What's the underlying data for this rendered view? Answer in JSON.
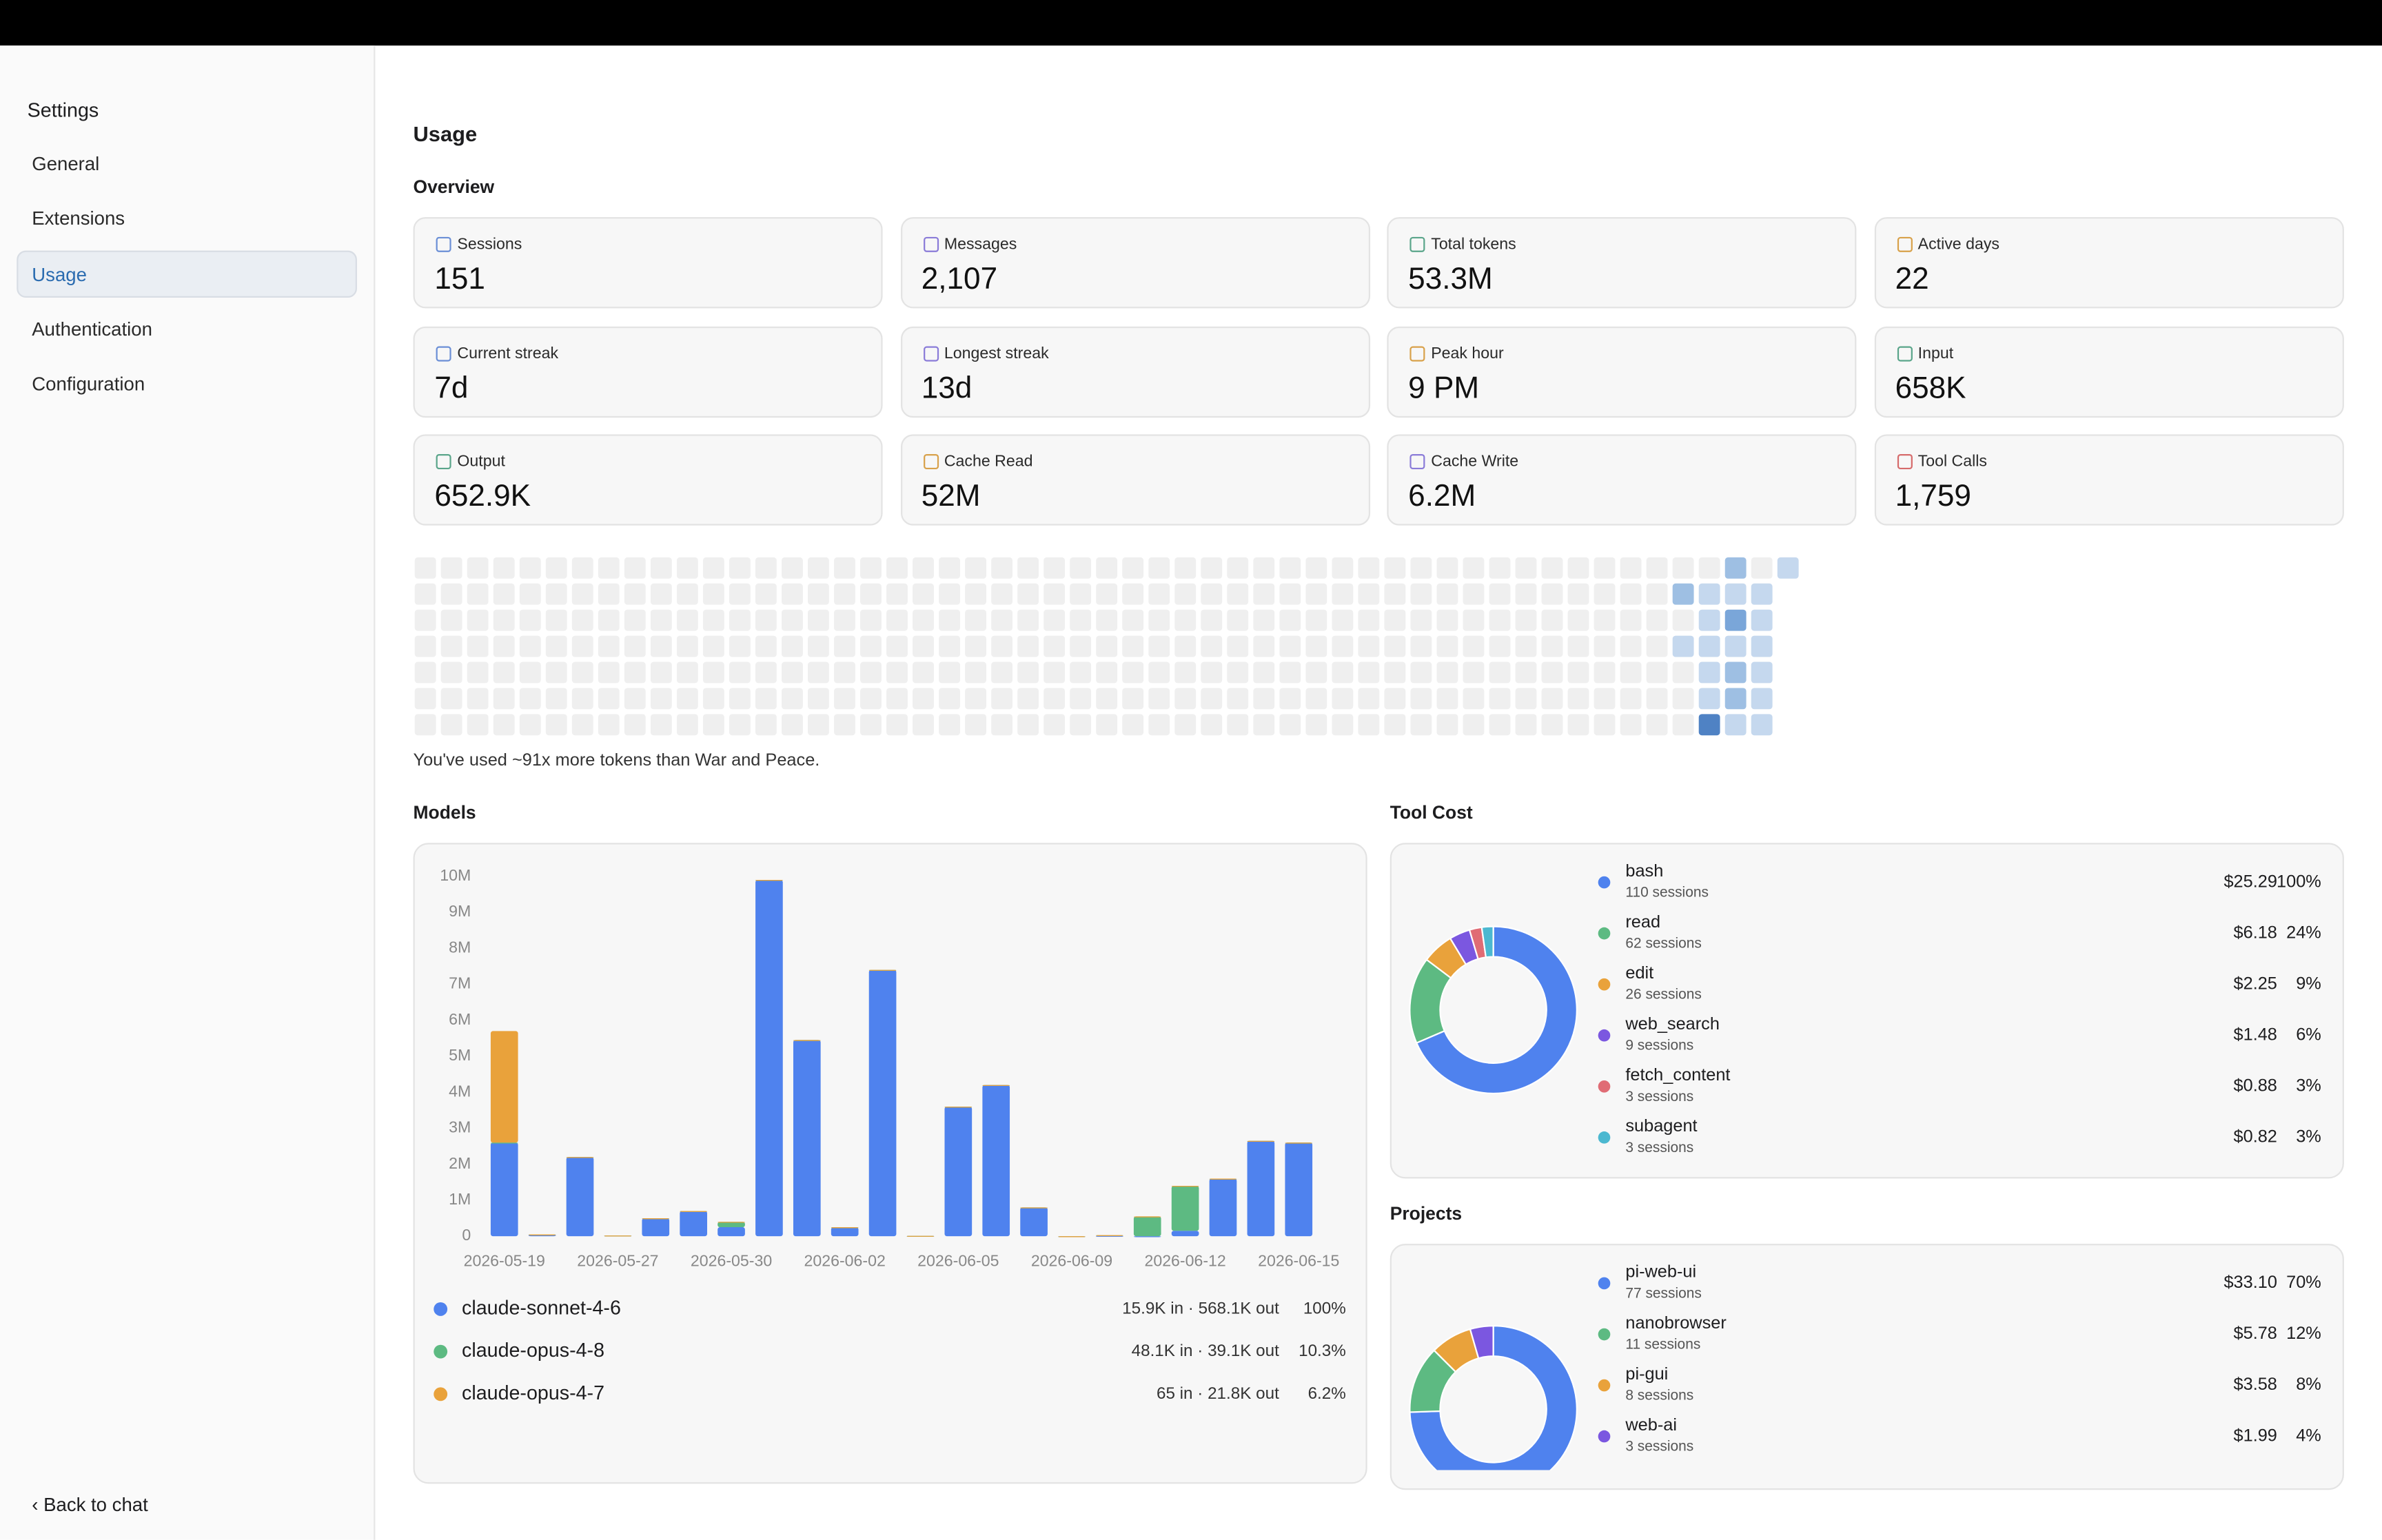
{
  "sidebar": {
    "title": "Settings",
    "items": [
      "General",
      "Extensions",
      "Usage",
      "Authentication",
      "Configuration"
    ],
    "selected": 2,
    "back": "Back to chat"
  },
  "page": {
    "title": "Usage",
    "overview": "Overview"
  },
  "stats": [
    {
      "label": "Sessions",
      "value": "151"
    },
    {
      "label": "Messages",
      "value": "2,107"
    },
    {
      "label": "Total tokens",
      "value": "53.3M"
    },
    {
      "label": "Active days",
      "value": "22"
    },
    {
      "label": "Current streak",
      "value": "7d"
    },
    {
      "label": "Longest streak",
      "value": "13d"
    },
    {
      "label": "Peak hour",
      "value": "9 PM"
    },
    {
      "label": "Input",
      "value": "658K"
    },
    {
      "label": "Output",
      "value": "652.9K"
    },
    {
      "label": "Cache Read",
      "value": "52M"
    },
    {
      "label": "Cache Write",
      "value": "6.2M"
    },
    {
      "label": "Tool Calls",
      "value": "1,759"
    }
  ],
  "heatmap": {
    "colors": [
      "#efefef",
      "#c5d8ee",
      "#9ebfe3",
      "#7aa6d9",
      "#4f82c4"
    ],
    "levels": [
      [
        0,
        0,
        0,
        0,
        0,
        0,
        0,
        0,
        0,
        0,
        0,
        0,
        0,
        0,
        0,
        0,
        0,
        0,
        0,
        0,
        0,
        0,
        0,
        0,
        0,
        0,
        0,
        0,
        0,
        0,
        0,
        0,
        0,
        0,
        0,
        0,
        0,
        0,
        0,
        0,
        0,
        0,
        0,
        0,
        0,
        0,
        0,
        0,
        0,
        0,
        2,
        0,
        1
      ],
      [
        0,
        0,
        0,
        0,
        0,
        0,
        0,
        0,
        0,
        0,
        0,
        0,
        0,
        0,
        0,
        0,
        0,
        0,
        0,
        0,
        0,
        0,
        0,
        0,
        0,
        0,
        0,
        0,
        0,
        0,
        0,
        0,
        0,
        0,
        0,
        0,
        0,
        0,
        0,
        0,
        0,
        0,
        0,
        0,
        0,
        0,
        0,
        0,
        2,
        1,
        1,
        1,
        null
      ],
      [
        0,
        0,
        0,
        0,
        0,
        0,
        0,
        0,
        0,
        0,
        0,
        0,
        0,
        0,
        0,
        0,
        0,
        0,
        0,
        0,
        0,
        0,
        0,
        0,
        0,
        0,
        0,
        0,
        0,
        0,
        0,
        0,
        0,
        0,
        0,
        0,
        0,
        0,
        0,
        0,
        0,
        0,
        0,
        0,
        0,
        0,
        0,
        0,
        0,
        1,
        3,
        1,
        null
      ],
      [
        0,
        0,
        0,
        0,
        0,
        0,
        0,
        0,
        0,
        0,
        0,
        0,
        0,
        0,
        0,
        0,
        0,
        0,
        0,
        0,
        0,
        0,
        0,
        0,
        0,
        0,
        0,
        0,
        0,
        0,
        0,
        0,
        0,
        0,
        0,
        0,
        0,
        0,
        0,
        0,
        0,
        0,
        0,
        0,
        0,
        0,
        0,
        0,
        1,
        1,
        1,
        1,
        null
      ],
      [
        0,
        0,
        0,
        0,
        0,
        0,
        0,
        0,
        0,
        0,
        0,
        0,
        0,
        0,
        0,
        0,
        0,
        0,
        0,
        0,
        0,
        0,
        0,
        0,
        0,
        0,
        0,
        0,
        0,
        0,
        0,
        0,
        0,
        0,
        0,
        0,
        0,
        0,
        0,
        0,
        0,
        0,
        0,
        0,
        0,
        0,
        0,
        0,
        0,
        1,
        2,
        1,
        null
      ],
      [
        0,
        0,
        0,
        0,
        0,
        0,
        0,
        0,
        0,
        0,
        0,
        0,
        0,
        0,
        0,
        0,
        0,
        0,
        0,
        0,
        0,
        0,
        0,
        0,
        0,
        0,
        0,
        0,
        0,
        0,
        0,
        0,
        0,
        0,
        0,
        0,
        0,
        0,
        0,
        0,
        0,
        0,
        0,
        0,
        0,
        0,
        0,
        0,
        0,
        1,
        2,
        1,
        null
      ],
      [
        0,
        0,
        0,
        0,
        0,
        0,
        0,
        0,
        0,
        0,
        0,
        0,
        0,
        0,
        0,
        0,
        0,
        0,
        0,
        0,
        0,
        0,
        0,
        0,
        0,
        0,
        0,
        0,
        0,
        0,
        0,
        0,
        0,
        0,
        0,
        0,
        0,
        0,
        0,
        0,
        0,
        0,
        0,
        0,
        0,
        0,
        0,
        0,
        0,
        4,
        1,
        1,
        null
      ]
    ],
    "note": "You've used ~91x more tokens than War and Peace."
  },
  "chart_data": [
    {
      "type": "bar",
      "stacked": true,
      "title": "Models",
      "categories": [
        "2026-05-19",
        null,
        null,
        "2026-05-27",
        null,
        null,
        "2026-05-30",
        null,
        null,
        "2026-06-02",
        null,
        null,
        "2026-06-05",
        null,
        null,
        "2026-06-09",
        null,
        null,
        "2026-06-12",
        null,
        null,
        "2026-06-15"
      ],
      "series": [
        {
          "name": "claude-sonnet-4-6",
          "color": "#4f82ee",
          "stats": "15.9K in · 568.1K out",
          "share": "100%",
          "values": [
            2.6,
            0.05,
            2.2,
            0.02,
            0.5,
            0.7,
            0.25,
            9.9,
            5.45,
            0.25,
            7.4,
            0.01,
            3.6,
            4.2,
            0.8,
            0,
            0.01,
            0,
            0.15,
            1.6,
            2.65,
            2.6
          ]
        },
        {
          "name": "claude-opus-4-8",
          "color": "#5dba82",
          "stats": "48.1K in · 39.1K out",
          "share": "10.3%",
          "values": [
            0,
            0,
            0,
            0,
            0,
            0,
            0.15,
            0,
            0,
            0,
            0,
            0,
            0,
            0,
            0,
            0,
            0.02,
            0.55,
            1.25,
            0,
            0,
            0
          ]
        },
        {
          "name": "claude-opus-4-7",
          "color": "#e9a23b",
          "stats": "65 in · 21.8K out",
          "share": "6.2%",
          "values": [
            3.1,
            0,
            0,
            0,
            0,
            0,
            0,
            0,
            0,
            0,
            0,
            0,
            0,
            0,
            0,
            0,
            0,
            0,
            0,
            0,
            0,
            0
          ]
        }
      ],
      "ylim": [
        0,
        10
      ],
      "yticks": [
        0,
        {
          "value": 1,
          "label": "1M"
        },
        {
          "value": 2,
          "label": "2M"
        },
        {
          "value": 3,
          "label": "3M"
        },
        {
          "value": 4,
          "label": "4M"
        },
        {
          "value": 5,
          "label": "5M"
        },
        {
          "value": 6,
          "label": "6M"
        },
        {
          "value": 7,
          "label": "7M"
        },
        {
          "value": 8,
          "label": "8M"
        },
        {
          "value": 9,
          "label": "9M"
        },
        {
          "value": 10,
          "label": "10M"
        }
      ]
    },
    {
      "type": "donut",
      "title": "Tool Cost",
      "categories": [
        "bash",
        "read",
        "edit",
        "web_search",
        "fetch_content",
        "subagent"
      ],
      "sublabels": [
        "110 sessions",
        "62 sessions",
        "26 sessions",
        "9 sessions",
        "3 sessions",
        "3 sessions"
      ],
      "values": [
        25.29,
        6.18,
        2.25,
        1.48,
        0.88,
        0.82
      ],
      "value_labels": [
        "$25.29",
        "$6.18",
        "$2.25",
        "$1.48",
        "$0.88",
        "$0.82"
      ],
      "shares": [
        "100%",
        "24%",
        "9%",
        "6%",
        "3%",
        "3%"
      ],
      "colors": [
        "#4f82ee",
        "#5dba82",
        "#e9a23b",
        "#7b57e0",
        "#e06c75",
        "#4cb8d0"
      ]
    },
    {
      "type": "donut",
      "title": "Projects",
      "categories": [
        "pi-web-ui",
        "nanobrowser",
        "pi-gui",
        "web-ai"
      ],
      "sublabels": [
        "77 sessions",
        "11 sessions",
        "8 sessions",
        "3 sessions"
      ],
      "values": [
        33.1,
        5.78,
        3.58,
        1.99
      ],
      "value_labels": [
        "$33.10",
        "$5.78",
        "$3.58",
        "$1.99"
      ],
      "shares": [
        "70%",
        "12%",
        "8%",
        "4%"
      ],
      "colors": [
        "#4f82ee",
        "#5dba82",
        "#e9a23b",
        "#7b57e0"
      ]
    }
  ]
}
